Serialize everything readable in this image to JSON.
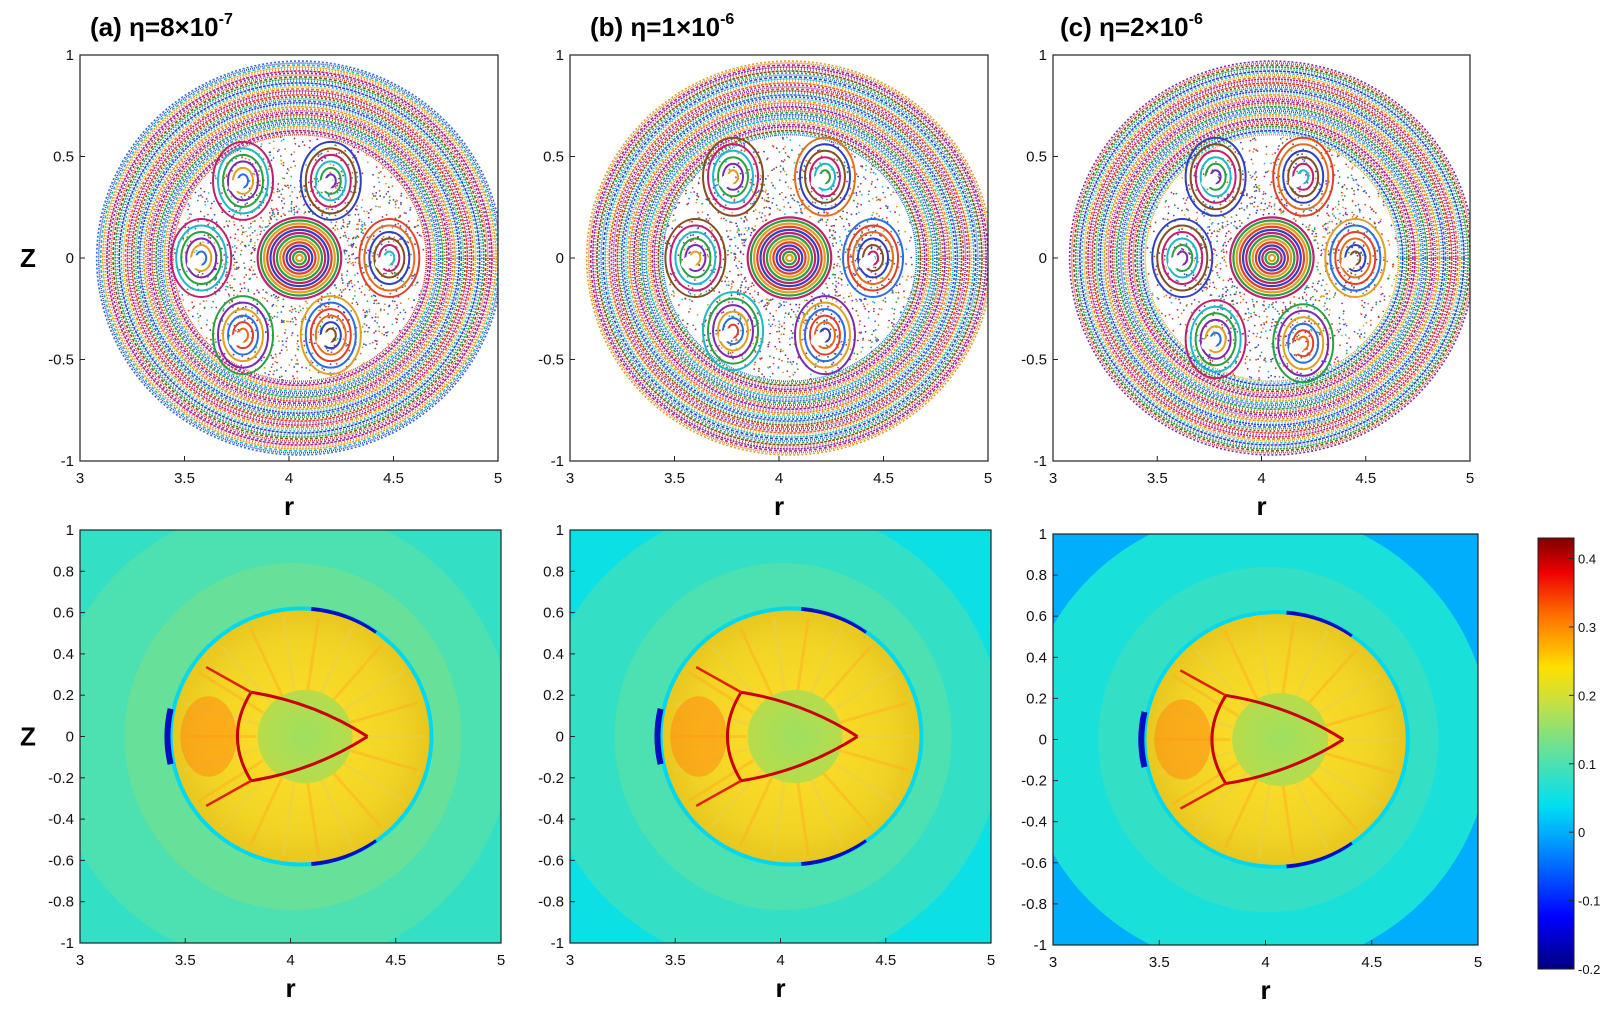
{
  "chart_data": [
    {
      "type": "scatter",
      "panel": "a",
      "title_prefix": "(a) ",
      "title_var": "η=8×10",
      "title_exp": "-7",
      "xlabel": "r",
      "ylabel": "Z",
      "xlim": [
        3,
        5
      ],
      "ylim": [
        -1,
        1
      ],
      "x_ticks": [
        "3",
        "3.5",
        "4",
        "4.5",
        "5"
      ],
      "y_ticks": [
        "1",
        "0.5",
        "0",
        "-0.5",
        "-1"
      ],
      "center": [
        4.05,
        0
      ],
      "outer_radius": 0.98,
      "core_radius": 0.2,
      "islands": [
        {
          "x": 3.78,
          "y": 0.38
        },
        {
          "x": 4.2,
          "y": 0.38
        },
        {
          "x": 4.48,
          "y": 0.0
        },
        {
          "x": 4.2,
          "y": -0.38
        },
        {
          "x": 3.78,
          "y": -0.38
        },
        {
          "x": 3.58,
          "y": 0.0
        }
      ]
    },
    {
      "type": "scatter",
      "panel": "b",
      "title_prefix": "(b) ",
      "title_var": "η=1×10",
      "title_exp": "-6",
      "xlabel": "r",
      "ylabel": "",
      "xlim": [
        3,
        5
      ],
      "ylim": [
        -1,
        1
      ],
      "x_ticks": [
        "3",
        "3.5",
        "4",
        "4.5",
        "5"
      ],
      "y_ticks": [
        "1",
        "0.5",
        "0",
        "-0.5",
        "-1"
      ],
      "center": [
        4.05,
        0
      ],
      "outer_radius": 0.98,
      "core_radius": 0.2,
      "islands": [
        {
          "x": 3.78,
          "y": 0.4
        },
        {
          "x": 4.22,
          "y": 0.4
        },
        {
          "x": 4.45,
          "y": 0.0
        },
        {
          "x": 4.22,
          "y": -0.38
        },
        {
          "x": 3.78,
          "y": -0.36
        },
        {
          "x": 3.6,
          "y": 0.0
        }
      ]
    },
    {
      "type": "scatter",
      "panel": "c",
      "title_prefix": "(c) ",
      "title_var": "η=2×10",
      "title_exp": "-6",
      "xlabel": "r",
      "ylabel": "",
      "xlim": [
        3,
        5
      ],
      "ylim": [
        -1,
        1
      ],
      "x_ticks": [
        "3",
        "3.5",
        "4",
        "4.5",
        "5"
      ],
      "y_ticks": [
        "1",
        "0.5",
        "0",
        "-0.5",
        "-1"
      ],
      "center": [
        4.05,
        0
      ],
      "outer_radius": 0.98,
      "core_radius": 0.2,
      "islands": [
        {
          "x": 3.78,
          "y": 0.4
        },
        {
          "x": 4.2,
          "y": 0.4
        },
        {
          "x": 4.45,
          "y": 0.0
        },
        {
          "x": 4.2,
          "y": -0.42
        },
        {
          "x": 3.78,
          "y": -0.4
        },
        {
          "x": 3.62,
          "y": 0.0
        }
      ]
    },
    {
      "type": "heatmap",
      "panel": "a-lower",
      "xlabel": "r",
      "ylabel": "Z",
      "xlim": [
        3,
        5
      ],
      "ylim": [
        -1,
        1
      ],
      "x_ticks": [
        "3",
        "3.5",
        "4",
        "4.5",
        "5"
      ],
      "y_ticks": [
        "1",
        "0.8",
        "0.6",
        "0.4",
        "0.2",
        "0",
        "-0.2",
        "-0.4",
        "-0.6",
        "-0.8",
        "-1"
      ],
      "background_value": 0.08,
      "outer_band_value": 0.1,
      "inner_disc": {
        "center": [
          4.05,
          0
        ],
        "radius": 0.61,
        "value": 0.2
      },
      "core_value": 0.12
    },
    {
      "type": "heatmap",
      "panel": "b-lower",
      "xlabel": "r",
      "ylabel": "",
      "xlim": [
        3,
        5
      ],
      "ylim": [
        -1,
        1
      ],
      "x_ticks": [
        "3",
        "3.5",
        "4",
        "4.5",
        "5"
      ],
      "y_ticks": [
        "1",
        "0.8",
        "0.6",
        "0.4",
        "0.2",
        "0",
        "-0.2",
        "-0.4",
        "-0.6",
        "-0.8",
        "-1"
      ],
      "background_value": 0.05,
      "outer_band_value": 0.08,
      "inner_disc": {
        "center": [
          4.05,
          0
        ],
        "radius": 0.61,
        "value": 0.2
      },
      "core_value": 0.12
    },
    {
      "type": "heatmap",
      "panel": "c-lower",
      "xlabel": "r",
      "ylabel": "",
      "xlim": [
        3,
        5
      ],
      "ylim": [
        -1,
        1
      ],
      "x_ticks": [
        "3",
        "3.5",
        "4",
        "4.5",
        "5"
      ],
      "y_ticks": [
        "1",
        "0.8",
        "0.6",
        "0.4",
        "0.2",
        "0",
        "-0.2",
        "-0.4",
        "-0.6",
        "-0.8",
        "-1"
      ],
      "background_value": 0.0,
      "outer_band_value": 0.06,
      "inner_disc": {
        "center": [
          4.05,
          0
        ],
        "radius": 0.61,
        "value": 0.2
      },
      "core_value": 0.12
    }
  ],
  "colorbar": {
    "range": [
      -0.2,
      0.43
    ],
    "ticks": [
      "0.4",
      "0.3",
      "0.2",
      "0.1",
      "0",
      "-0.1",
      "-0.2"
    ],
    "colormap": "jet"
  }
}
